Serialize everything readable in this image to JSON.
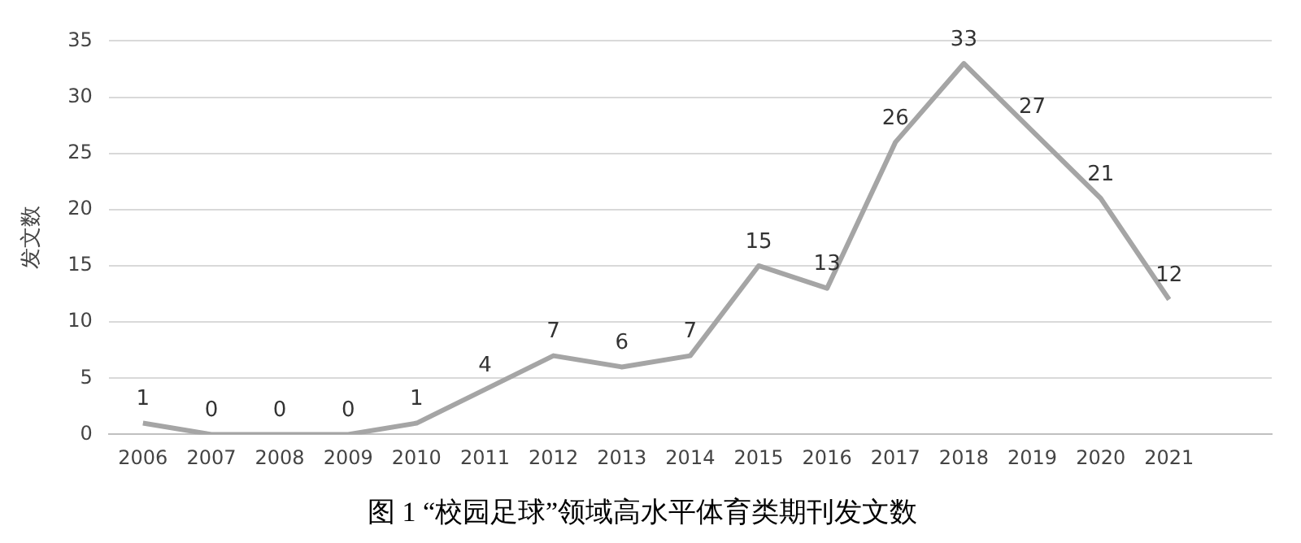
{
  "chart_data": {
    "type": "line",
    "title": "图 1 “校园足球”领域高水平体育类期刊发文数",
    "ylabel": "发文数",
    "categories": [
      "2006",
      "2007",
      "2008",
      "2009",
      "2010",
      "2011",
      "2012",
      "2013",
      "2014",
      "2015",
      "2016",
      "2017",
      "2018",
      "2019",
      "2020",
      "2021",
      null
    ],
    "series": [
      {
        "color": "#a5a5a5",
        "values": [
          1,
          0,
          0,
          0,
          1,
          4,
          7,
          6,
          7,
          15,
          13,
          26,
          33,
          27,
          21,
          12,
          null
        ]
      }
    ],
    "ylim": [
      0,
      35
    ],
    "yticks": [
      0,
      5,
      10,
      15,
      20,
      25,
      30,
      35
    ],
    "grid": "y",
    "data_labels": true,
    "marker": "none",
    "line_style": "solid",
    "legend": false
  }
}
